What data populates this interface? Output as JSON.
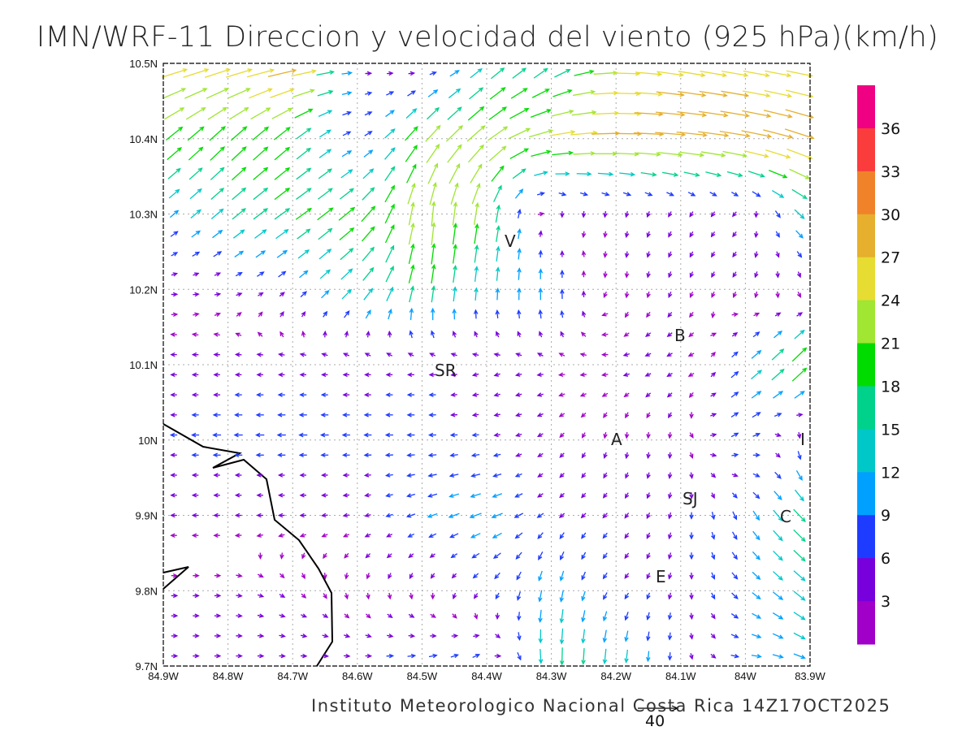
{
  "title": "IMN/WRF-11 Direccion y velocidad del viento (925 hPa)(km/h)",
  "footer": "Instituto Meteorologico Nacional Costa Rica  14Z17OCT2025",
  "reference_vector": {
    "label": "40",
    "speed": 40
  },
  "chart_data": {
    "type": "vector-field",
    "title": "IMN/WRF-11 Direccion y velocidad del viento (925 hPa)(km/h)",
    "units": "km/h",
    "lon_ticks": [
      "84.9W",
      "84.8W",
      "84.7W",
      "84.6W",
      "84.5W",
      "84.4W",
      "84.3W",
      "84.2W",
      "84.1W",
      "84W",
      "83.9W"
    ],
    "lat_ticks": [
      "10.5N",
      "10.4N",
      "10.3N",
      "10.2N",
      "10.1N",
      "10N",
      "9.9N",
      "9.8N",
      "9.7N"
    ],
    "lon_range": [
      -84.9,
      -83.9
    ],
    "lat_range": [
      9.7,
      10.5
    ],
    "grid": true,
    "field_note": "coarse estimate, rows from 10.5N to 9.7N, cols 84.9W to 83.9W; each [direction_deg_toward_ccw_from_east, speed_kmh]",
    "field": [
      [
        [
          15,
          27
        ],
        [
          15,
          27
        ],
        [
          10,
          30
        ],
        [
          0,
          6
        ],
        [
          -30,
          4
        ],
        [
          40,
          15
        ],
        [
          40,
          15
        ],
        [
          0,
          24
        ],
        [
          -10,
          26
        ],
        [
          -10,
          25
        ],
        [
          -10,
          25
        ]
      ],
      [
        [
          40,
          20
        ],
        [
          45,
          20
        ],
        [
          40,
          19
        ],
        [
          20,
          6
        ],
        [
          50,
          22
        ],
        [
          40,
          24
        ],
        [
          10,
          25
        ],
        [
          0,
          28
        ],
        [
          -5,
          30
        ],
        [
          -10,
          30
        ],
        [
          -20,
          30
        ]
      ],
      [
        [
          40,
          9
        ],
        [
          40,
          16
        ],
        [
          35,
          18
        ],
        [
          40,
          20
        ],
        [
          85,
          24
        ],
        [
          80,
          21
        ],
        [
          -90,
          4
        ],
        [
          -100,
          3
        ],
        [
          -120,
          4
        ],
        [
          -130,
          4
        ],
        [
          -40,
          15
        ]
      ],
      [
        [
          0,
          4
        ],
        [
          10,
          4
        ],
        [
          40,
          7
        ],
        [
          45,
          15
        ],
        [
          80,
          18
        ],
        [
          85,
          12
        ],
        [
          90,
          12
        ],
        [
          -90,
          3
        ],
        [
          -110,
          3
        ],
        [
          -120,
          3
        ],
        [
          -90,
          3
        ]
      ],
      [
        [
          180,
          4
        ],
        [
          180,
          5
        ],
        [
          180,
          5
        ],
        [
          180,
          5
        ],
        [
          180,
          6
        ],
        [
          200,
          4
        ],
        [
          180,
          3
        ],
        [
          180,
          3
        ],
        [
          210,
          6
        ],
        [
          40,
          12
        ],
        [
          45,
          24
        ]
      ],
      [
        [
          180,
          6
        ],
        [
          180,
          8
        ],
        [
          180,
          8
        ],
        [
          180,
          7
        ],
        [
          180,
          7
        ],
        [
          185,
          6
        ],
        [
          220,
          3
        ],
        [
          -90,
          3
        ],
        [
          -90,
          3
        ],
        [
          30,
          9
        ],
        [
          -100,
          9
        ]
      ],
      [
        [
          180,
          3
        ],
        [
          180,
          3
        ],
        [
          180,
          3
        ],
        [
          190,
          4
        ],
        [
          200,
          9
        ],
        [
          200,
          12
        ],
        [
          220,
          6
        ],
        [
          230,
          6
        ],
        [
          -100,
          6
        ],
        [
          -60,
          9
        ],
        [
          -45,
          18
        ]
      ],
      [
        [
          0,
          3
        ],
        [
          0,
          3
        ],
        [
          -40,
          3
        ],
        [
          -90,
          3
        ],
        [
          -90,
          3
        ],
        [
          230,
          6
        ],
        [
          -100,
          12
        ],
        [
          230,
          6
        ],
        [
          -100,
          6
        ],
        [
          -40,
          9
        ],
        [
          -40,
          15
        ]
      ],
      [
        [
          0,
          6
        ],
        [
          0,
          6
        ],
        [
          0,
          6
        ],
        [
          0,
          6
        ],
        [
          10,
          9
        ],
        [
          30,
          9
        ],
        [
          -90,
          18
        ],
        [
          -95,
          15
        ],
        [
          -90,
          6
        ],
        [
          0,
          9
        ],
        [
          -20,
          12
        ]
      ]
    ],
    "colorbar": {
      "labels": [
        "36",
        "33",
        "30",
        "27",
        "24",
        "21",
        "18",
        "15",
        "12",
        "9",
        "6",
        "3"
      ],
      "thresholds": [
        3,
        6,
        9,
        12,
        15,
        18,
        21,
        24,
        27,
        30,
        33,
        36
      ],
      "colors": [
        "#a000c8",
        "#7800dc",
        "#1e3cff",
        "#00a0ff",
        "#00c8c8",
        "#00d28c",
        "#00dc00",
        "#a0e632",
        "#e6dc32",
        "#e6af2d",
        "#f0822a",
        "#fa3c3c",
        "#f00082"
      ]
    },
    "cities": [
      {
        "label": "V"
      },
      {
        "label": "B"
      },
      {
        "label": "SR"
      },
      {
        "label": "A"
      },
      {
        "label": "I"
      },
      {
        "label": "SJ"
      },
      {
        "label": "C"
      },
      {
        "label": "E"
      }
    ]
  }
}
